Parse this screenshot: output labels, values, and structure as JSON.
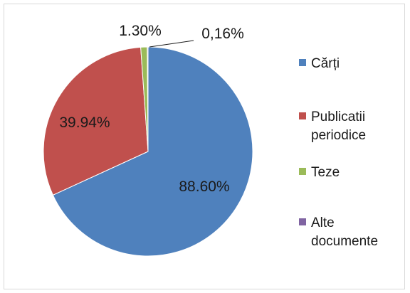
{
  "chart_data": {
    "type": "pie",
    "title": "",
    "legend_position": "right",
    "slices": [
      {
        "name": "Cărți",
        "percent_label": "88.60%",
        "color": "#4f81bd"
      },
      {
        "name": "Publicatii periodice",
        "percent_label": "39.94%",
        "color": "#c0504d"
      },
      {
        "name": "Teze",
        "percent_label": "1.30%",
        "color": "#9bbb59"
      },
      {
        "name": "Alte documente",
        "percent_label": "0,16%",
        "color": "#8064a2"
      }
    ],
    "values": [
      88.6,
      39.94,
      1.3,
      0.16
    ]
  },
  "legend": {
    "items": [
      {
        "lines": [
          "Cărți"
        ],
        "color": "#4f81bd"
      },
      {
        "lines": [
          "Publicatii",
          "periodice"
        ],
        "color": "#c0504d"
      },
      {
        "lines": [
          "Teze"
        ],
        "color": "#9bbb59"
      },
      {
        "lines": [
          "Alte",
          "documente"
        ],
        "color": "#8064a2"
      }
    ]
  }
}
